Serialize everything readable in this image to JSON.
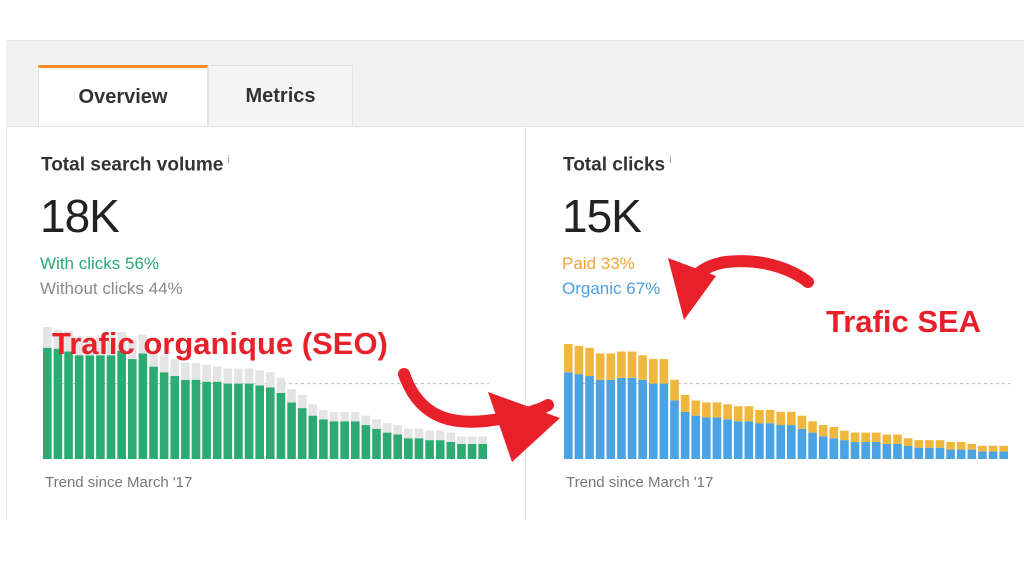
{
  "tabs": [
    {
      "label": "Overview",
      "active": true
    },
    {
      "label": "Metrics",
      "active": false
    }
  ],
  "search_volume": {
    "title": "Total search volume",
    "info": "i",
    "value": "18K",
    "with_clicks": "With clicks 56%",
    "without_clicks": "Without clicks 44%",
    "trend": "Trend since March '17",
    "colors": {
      "with": "#2baa72",
      "without": "#e4e4e4",
      "with_text": "#2baa72",
      "without_text": "#8a8a8a"
    }
  },
  "clicks": {
    "title": "Total clicks",
    "info": "i",
    "value": "15K",
    "paid": "Paid 33%",
    "organic": "Organic 67%",
    "trend": "Trend since March '17",
    "colors": {
      "paid": "#f0b73e",
      "organic": "#4ba3e3",
      "paid_text": "#f0a23a",
      "organic_text": "#4a9fe0"
    }
  },
  "annotations": {
    "seo": "Trafic organique (SEO)",
    "sea": "Trafic SEA",
    "color": "#e8202a"
  },
  "chart_data": [
    {
      "type": "bar",
      "stacked": true,
      "series": [
        {
          "name": "With clicks",
          "values": [
            118,
            117,
            114,
            110,
            110,
            110,
            110,
            115,
            106,
            112,
            98,
            92,
            88,
            84,
            84,
            82,
            82,
            80,
            80,
            80,
            78,
            76,
            70,
            60,
            54,
            46,
            42,
            40,
            40,
            40,
            36,
            32,
            28,
            26,
            22,
            22,
            20,
            20,
            18,
            16,
            16,
            16
          ]
        },
        {
          "name": "Without clicks",
          "values": [
            22,
            20,
            22,
            20,
            20,
            20,
            20,
            20,
            20,
            20,
            16,
            18,
            18,
            18,
            18,
            18,
            16,
            16,
            16,
            16,
            16,
            16,
            16,
            14,
            14,
            12,
            10,
            10,
            10,
            10,
            10,
            10,
            10,
            10,
            10,
            10,
            10,
            10,
            10,
            8,
            8,
            8
          ]
        }
      ]
    },
    {
      "type": "bar",
      "stacked": true,
      "series": [
        {
          "name": "Organic",
          "values": [
            92,
            90,
            88,
            84,
            84,
            86,
            86,
            84,
            80,
            80,
            62,
            50,
            46,
            44,
            44,
            42,
            40,
            40,
            38,
            38,
            36,
            36,
            32,
            28,
            24,
            22,
            20,
            18,
            18,
            18,
            16,
            16,
            14,
            12,
            12,
            12,
            10,
            10,
            10,
            8,
            8,
            8
          ]
        },
        {
          "name": "Paid",
          "values": [
            30,
            30,
            30,
            28,
            28,
            28,
            28,
            26,
            26,
            26,
            22,
            18,
            16,
            16,
            16,
            16,
            16,
            16,
            14,
            14,
            14,
            14,
            14,
            12,
            12,
            12,
            10,
            10,
            10,
            10,
            10,
            10,
            8,
            8,
            8,
            8,
            8,
            8,
            6,
            6,
            6,
            6
          ]
        }
      ]
    }
  ]
}
